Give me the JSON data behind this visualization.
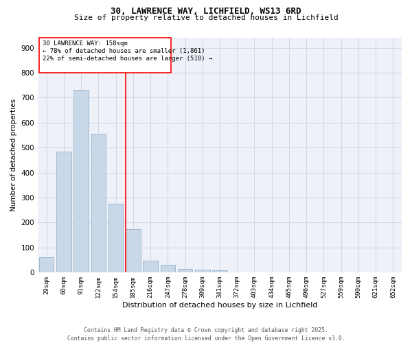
{
  "title1": "30, LAWRENCE WAY, LICHFIELD, WS13 6RD",
  "title2": "Size of property relative to detached houses in Lichfield",
  "xlabel": "Distribution of detached houses by size in Lichfield",
  "ylabel": "Number of detached properties",
  "categories": [
    "29sqm",
    "60sqm",
    "91sqm",
    "122sqm",
    "154sqm",
    "185sqm",
    "216sqm",
    "247sqm",
    "278sqm",
    "309sqm",
    "341sqm",
    "372sqm",
    "403sqm",
    "434sqm",
    "465sqm",
    "496sqm",
    "527sqm",
    "559sqm",
    "590sqm",
    "621sqm",
    "652sqm"
  ],
  "values": [
    60,
    485,
    730,
    555,
    275,
    175,
    47,
    32,
    15,
    13,
    8,
    0,
    0,
    0,
    0,
    0,
    0,
    0,
    0,
    0,
    0
  ],
  "bar_color": "#c8d8e8",
  "bar_edge_color": "#a0b8d0",
  "grid_color": "#d0d8e8",
  "bg_color": "#eef2f8",
  "redline_x": 4.58,
  "annotation_title": "30 LAWRENCE WAY: 158sqm",
  "annotation_line1": "← 78% of detached houses are smaller (1,861)",
  "annotation_line2": "22% of semi-detached houses are larger (510) →",
  "ylim": [
    0,
    940
  ],
  "yticks": [
    0,
    100,
    200,
    300,
    400,
    500,
    600,
    700,
    800,
    900
  ],
  "footer1": "Contains HM Land Registry data © Crown copyright and database right 2025.",
  "footer2": "Contains public sector information licensed under the Open Government Licence v3.0."
}
